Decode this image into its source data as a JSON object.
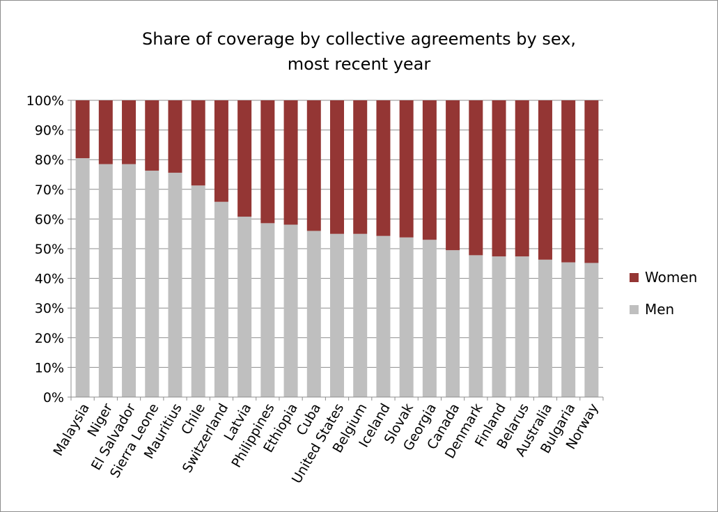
{
  "chart_data": {
    "type": "bar",
    "stacked": true,
    "percent": true,
    "title_line1": "Share of coverage by collective agreements by sex,",
    "title_line2": "most recent year",
    "xlabel": "",
    "ylabel": "",
    "ylim": [
      0,
      100
    ],
    "yticks": [
      "0%",
      "10%",
      "20%",
      "30%",
      "40%",
      "50%",
      "60%",
      "70%",
      "80%",
      "90%",
      "100%"
    ],
    "grid": true,
    "legend_position": "right",
    "categories": [
      "Malaysia",
      "Niger",
      "El Salvador",
      "Sierra Leone",
      "Mauritius",
      "Chile",
      "Switzerland",
      "Latvia",
      "Philippines",
      "Ethiopia",
      "Cuba",
      "United States",
      "Belgium",
      "Iceland",
      "Slovak",
      "Georgia",
      "Canada",
      "Denmark",
      "Finland",
      "Belarus",
      "Australia",
      "Bulgaria",
      "Norway"
    ],
    "series": [
      {
        "name": "Men",
        "color": "#bfbfbf",
        "values": [
          80.5,
          78.5,
          78.5,
          76.3,
          75.6,
          71.3,
          65.8,
          60.8,
          58.6,
          58.1,
          56,
          55,
          55,
          54.3,
          53.8,
          53,
          49.5,
          47.8,
          47.4,
          47.4,
          46.3,
          45.4,
          45.2
        ]
      },
      {
        "name": "Women",
        "color": "#943634",
        "values": [
          19.5,
          21.5,
          21.5,
          23.7,
          24.4,
          28.7,
          34.2,
          39.2,
          41.4,
          41.9,
          44,
          45,
          45,
          45.7,
          46.2,
          47,
          50.5,
          52.2,
          52.6,
          52.6,
          53.7,
          54.6,
          54.8
        ]
      }
    ],
    "legend": [
      {
        "name": "Women",
        "color": "#943634"
      },
      {
        "name": "Men",
        "color": "#bfbfbf"
      }
    ]
  }
}
